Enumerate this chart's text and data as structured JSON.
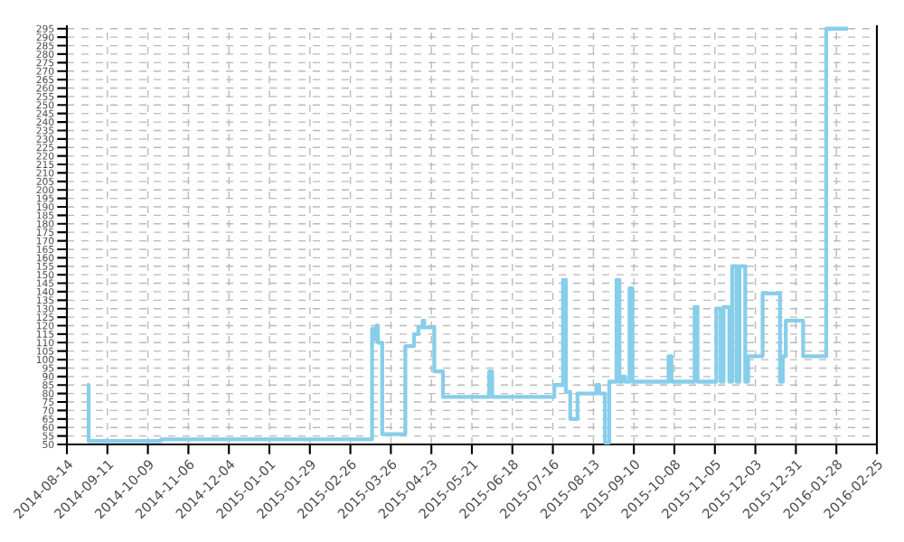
{
  "chart_data": {
    "type": "step",
    "xlim": [
      "2014-08-14",
      "2016-02-25"
    ],
    "xticks": [
      "2014-08-14",
      "2014-09-11",
      "2014-10-09",
      "2014-11-06",
      "2014-12-04",
      "2015-01-01",
      "2015-01-29",
      "2015-02-26",
      "2015-03-26",
      "2015-04-23",
      "2015-05-21",
      "2015-06-18",
      "2015-07-16",
      "2015-08-13",
      "2015-09-10",
      "2015-10-08",
      "2015-11-05",
      "2015-12-03",
      "2015-12-31",
      "2016-01-28",
      "2016-02-25"
    ],
    "ylim": [
      50,
      297
    ],
    "yticks": [
      50,
      55,
      60,
      65,
      70,
      75,
      80,
      85,
      90,
      95,
      100,
      105,
      110,
      115,
      120,
      125,
      130,
      135,
      140,
      145,
      150,
      155,
      160,
      165,
      170,
      175,
      180,
      185,
      190,
      195,
      200,
      205,
      210,
      215,
      220,
      225,
      230,
      235,
      240,
      245,
      250,
      255,
      260,
      265,
      270,
      275,
      280,
      285,
      290,
      295
    ],
    "grid": true,
    "series": [
      {
        "color": "#87ceeb",
        "x": [
          "2014-08-28",
          "2014-08-29",
          "2014-10-18",
          "2015-03-13",
          "2015-03-15",
          "2015-03-16",
          "2015-03-17",
          "2015-03-20",
          "2015-04-05",
          "2015-04-11",
          "2015-04-14",
          "2015-04-17",
          "2015-04-18",
          "2015-04-25",
          "2015-05-01",
          "2015-06-02",
          "2015-06-04",
          "2015-07-17",
          "2015-07-23",
          "2015-07-25",
          "2015-07-28",
          "2015-08-02",
          "2015-08-15",
          "2015-08-17",
          "2015-08-21",
          "2015-08-24",
          "2015-08-29",
          "2015-08-31",
          "2015-09-02",
          "2015-09-04",
          "2015-09-07",
          "2015-09-09",
          "2015-10-04",
          "2015-10-06",
          "2015-10-22",
          "2015-10-24",
          "2015-11-06",
          "2015-11-09",
          "2015-11-11",
          "2015-11-15",
          "2015-11-17",
          "2015-11-20",
          "2015-11-22",
          "2015-11-26",
          "2015-11-28",
          "2015-12-08",
          "2015-12-20",
          "2015-12-22",
          "2015-12-24",
          "2016-01-05",
          "2016-01-21",
          "2016-02-05"
        ],
        "values": [
          85,
          52,
          53,
          118,
          112,
          120,
          110,
          56,
          108,
          115,
          119,
          123,
          119,
          93,
          78,
          93,
          78,
          85,
          147,
          81,
          65,
          80,
          85,
          80,
          51,
          87,
          147,
          87,
          90,
          87,
          142,
          87,
          102,
          87,
          131,
          87,
          130,
          87,
          131,
          87,
          155,
          87,
          155,
          87,
          102,
          139,
          87,
          102,
          123,
          102,
          295,
          295
        ]
      }
    ]
  }
}
